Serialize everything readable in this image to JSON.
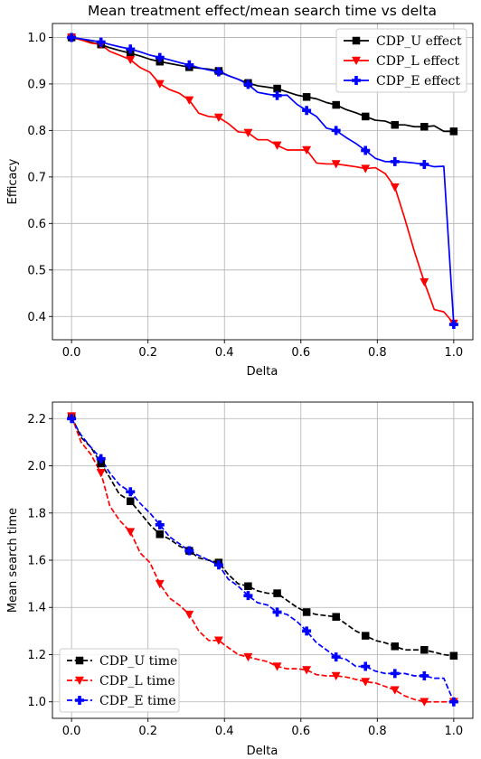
{
  "chart_data": [
    {
      "type": "line",
      "title": "Mean treatment effect/mean search time vs delta",
      "xlabel": "Delta",
      "ylabel": "Efficacy",
      "xlim": [
        -0.05,
        1.05
      ],
      "ylim": [
        0.35,
        1.03
      ],
      "xticks": [
        0.0,
        0.2,
        0.4,
        0.6,
        0.8,
        1.0
      ],
      "xtick_labels": [
        "0.0",
        "0.2",
        "0.4",
        "0.6",
        "0.8",
        "1.0"
      ],
      "yticks": [
        0.4,
        0.5,
        0.6,
        0.7,
        0.8,
        0.9,
        1.0
      ],
      "ytick_labels": [
        "0.4",
        "0.5",
        "0.6",
        "0.7",
        "0.8",
        "0.9",
        "1.0"
      ],
      "grid": true,
      "legend": "top-right",
      "series": [
        {
          "name": "CDP_U effect",
          "color": "#000000",
          "marker": "square",
          "dash": "solid",
          "x": [
            0.0,
            0.025,
            0.05,
            0.075,
            0.1,
            0.125,
            0.154,
            0.18,
            0.205,
            0.231,
            0.256,
            0.282,
            0.308,
            0.333,
            0.359,
            0.385,
            0.41,
            0.436,
            0.462,
            0.487,
            0.513,
            0.538,
            0.564,
            0.59,
            0.615,
            0.641,
            0.667,
            0.692,
            0.718,
            0.744,
            0.769,
            0.795,
            0.821,
            0.846,
            0.872,
            0.897,
            0.923,
            0.949,
            0.974,
            1.0
          ],
          "y": [
            1.0,
            0.995,
            0.99,
            0.985,
            0.978,
            0.972,
            0.966,
            0.96,
            0.953,
            0.948,
            0.944,
            0.94,
            0.936,
            0.934,
            0.932,
            0.928,
            0.918,
            0.91,
            0.902,
            0.896,
            0.893,
            0.89,
            0.883,
            0.876,
            0.872,
            0.868,
            0.86,
            0.855,
            0.845,
            0.838,
            0.83,
            0.822,
            0.82,
            0.812,
            0.812,
            0.808,
            0.808,
            0.81,
            0.798,
            0.798
          ],
          "marker_x": [
            0.0,
            0.077,
            0.154,
            0.231,
            0.308,
            0.385,
            0.462,
            0.538,
            0.615,
            0.692,
            0.769,
            0.846,
            0.923,
            1.0
          ],
          "marker_y": [
            1.0,
            0.985,
            0.966,
            0.948,
            0.936,
            0.928,
            0.902,
            0.89,
            0.872,
            0.855,
            0.83,
            0.812,
            0.808,
            0.798
          ]
        },
        {
          "name": "CDP_L effect",
          "color": "#ff0000",
          "marker": "triangle-down",
          "dash": "solid",
          "x": [
            0.0,
            0.025,
            0.05,
            0.077,
            0.1,
            0.125,
            0.154,
            0.18,
            0.205,
            0.231,
            0.256,
            0.282,
            0.308,
            0.333,
            0.359,
            0.385,
            0.41,
            0.436,
            0.462,
            0.487,
            0.513,
            0.538,
            0.564,
            0.59,
            0.615,
            0.641,
            0.667,
            0.692,
            0.718,
            0.744,
            0.769,
            0.795,
            0.821,
            0.846,
            0.872,
            0.897,
            0.923,
            0.949,
            0.974,
            1.0
          ],
          "y": [
            1.0,
            0.995,
            0.988,
            0.985,
            0.97,
            0.962,
            0.952,
            0.935,
            0.925,
            0.9,
            0.888,
            0.88,
            0.865,
            0.837,
            0.83,
            0.828,
            0.815,
            0.797,
            0.795,
            0.78,
            0.78,
            0.768,
            0.758,
            0.758,
            0.758,
            0.73,
            0.728,
            0.728,
            0.725,
            0.722,
            0.718,
            0.72,
            0.707,
            0.678,
            0.61,
            0.54,
            0.474,
            0.415,
            0.41,
            0.385
          ],
          "marker_x": [
            0.0,
            0.077,
            0.154,
            0.231,
            0.308,
            0.385,
            0.462,
            0.538,
            0.615,
            0.692,
            0.769,
            0.846,
            0.923,
            1.0
          ],
          "marker_y": [
            1.0,
            0.985,
            0.952,
            0.9,
            0.865,
            0.828,
            0.795,
            0.768,
            0.758,
            0.728,
            0.718,
            0.678,
            0.474,
            0.385
          ]
        },
        {
          "name": "CDP_E effect",
          "color": "#0000ff",
          "marker": "plus",
          "dash": "solid",
          "x": [
            0.0,
            0.025,
            0.05,
            0.077,
            0.1,
            0.125,
            0.154,
            0.18,
            0.205,
            0.231,
            0.256,
            0.282,
            0.308,
            0.333,
            0.359,
            0.385,
            0.41,
            0.436,
            0.462,
            0.487,
            0.513,
            0.538,
            0.564,
            0.59,
            0.615,
            0.641,
            0.667,
            0.692,
            0.718,
            0.744,
            0.769,
            0.795,
            0.821,
            0.846,
            0.872,
            0.897,
            0.923,
            0.949,
            0.974,
            1.0
          ],
          "y": [
            1.0,
            0.997,
            0.994,
            0.99,
            0.985,
            0.98,
            0.975,
            0.969,
            0.962,
            0.957,
            0.952,
            0.946,
            0.941,
            0.935,
            0.93,
            0.926,
            0.918,
            0.91,
            0.899,
            0.882,
            0.878,
            0.875,
            0.876,
            0.856,
            0.843,
            0.83,
            0.805,
            0.8,
            0.785,
            0.772,
            0.757,
            0.74,
            0.733,
            0.733,
            0.732,
            0.73,
            0.727,
            0.722,
            0.723,
            0.383
          ],
          "marker_x": [
            0.0,
            0.077,
            0.154,
            0.231,
            0.308,
            0.385,
            0.462,
            0.538,
            0.615,
            0.692,
            0.769,
            0.846,
            0.923,
            1.0
          ],
          "marker_y": [
            1.0,
            0.99,
            0.975,
            0.957,
            0.941,
            0.926,
            0.899,
            0.875,
            0.843,
            0.8,
            0.757,
            0.733,
            0.727,
            0.383
          ]
        }
      ]
    },
    {
      "type": "line",
      "title": "",
      "xlabel": "Delta",
      "ylabel": "Mean search time",
      "xlim": [
        -0.05,
        1.05
      ],
      "ylim": [
        0.93,
        2.27
      ],
      "xticks": [
        0.0,
        0.2,
        0.4,
        0.6,
        0.8,
        1.0
      ],
      "xtick_labels": [
        "0.0",
        "0.2",
        "0.4",
        "0.6",
        "0.8",
        "1.0"
      ],
      "yticks": [
        1.0,
        1.2,
        1.4,
        1.6,
        1.8,
        2.0,
        2.2
      ],
      "ytick_labels": [
        "1.0",
        "1.2",
        "1.4",
        "1.6",
        "1.8",
        "2.0",
        "2.2"
      ],
      "grid": true,
      "legend": "bottom-left",
      "series": [
        {
          "name": "CDP_U time",
          "color": "#000000",
          "marker": "square",
          "dash": "dashed",
          "x": [
            0.0,
            0.025,
            0.05,
            0.077,
            0.1,
            0.125,
            0.154,
            0.18,
            0.205,
            0.231,
            0.256,
            0.282,
            0.308,
            0.333,
            0.359,
            0.385,
            0.41,
            0.436,
            0.462,
            0.487,
            0.513,
            0.538,
            0.564,
            0.59,
            0.615,
            0.641,
            0.667,
            0.692,
            0.718,
            0.744,
            0.769,
            0.795,
            0.821,
            0.846,
            0.872,
            0.897,
            0.923,
            0.949,
            0.974,
            1.0
          ],
          "y": [
            2.21,
            2.12,
            2.08,
            2.01,
            1.95,
            1.88,
            1.85,
            1.8,
            1.75,
            1.71,
            1.69,
            1.66,
            1.64,
            1.61,
            1.6,
            1.59,
            1.54,
            1.5,
            1.49,
            1.47,
            1.46,
            1.46,
            1.43,
            1.4,
            1.38,
            1.37,
            1.365,
            1.36,
            1.33,
            1.3,
            1.28,
            1.26,
            1.25,
            1.235,
            1.22,
            1.22,
            1.22,
            1.21,
            1.2,
            1.195
          ],
          "marker_x": [
            0.0,
            0.077,
            0.154,
            0.231,
            0.308,
            0.385,
            0.462,
            0.538,
            0.615,
            0.692,
            0.769,
            0.846,
            0.923,
            1.0
          ],
          "marker_y": [
            2.21,
            2.01,
            1.85,
            1.71,
            1.64,
            1.59,
            1.49,
            1.46,
            1.38,
            1.36,
            1.28,
            1.235,
            1.22,
            1.195
          ]
        },
        {
          "name": "CDP_L time",
          "color": "#ff0000",
          "marker": "triangle-down",
          "dash": "dashed",
          "x": [
            0.0,
            0.025,
            0.05,
            0.077,
            0.1,
            0.125,
            0.154,
            0.18,
            0.205,
            0.231,
            0.256,
            0.282,
            0.308,
            0.333,
            0.359,
            0.385,
            0.41,
            0.436,
            0.462,
            0.487,
            0.513,
            0.538,
            0.564,
            0.59,
            0.615,
            0.641,
            0.667,
            0.692,
            0.718,
            0.744,
            0.769,
            0.795,
            0.821,
            0.846,
            0.872,
            0.897,
            0.923,
            0.949,
            0.974,
            1.0
          ],
          "y": [
            2.21,
            2.1,
            2.05,
            1.97,
            1.83,
            1.77,
            1.72,
            1.63,
            1.59,
            1.5,
            1.44,
            1.41,
            1.37,
            1.3,
            1.26,
            1.26,
            1.23,
            1.2,
            1.19,
            1.18,
            1.17,
            1.15,
            1.14,
            1.14,
            1.135,
            1.115,
            1.11,
            1.11,
            1.105,
            1.095,
            1.085,
            1.08,
            1.065,
            1.05,
            1.025,
            1.01,
            1.0,
            1.0,
            1.0,
            1.0
          ],
          "marker_x": [
            0.0,
            0.077,
            0.154,
            0.231,
            0.308,
            0.385,
            0.462,
            0.538,
            0.615,
            0.692,
            0.769,
            0.846,
            0.923,
            1.0
          ],
          "marker_y": [
            2.21,
            1.97,
            1.72,
            1.5,
            1.37,
            1.26,
            1.19,
            1.15,
            1.135,
            1.11,
            1.085,
            1.05,
            1.0,
            1.0
          ]
        },
        {
          "name": "CDP_E time",
          "color": "#0000ff",
          "marker": "plus",
          "dash": "dashed",
          "x": [
            0.0,
            0.025,
            0.05,
            0.077,
            0.1,
            0.125,
            0.154,
            0.18,
            0.205,
            0.231,
            0.256,
            0.282,
            0.308,
            0.333,
            0.359,
            0.385,
            0.41,
            0.436,
            0.462,
            0.487,
            0.513,
            0.538,
            0.564,
            0.59,
            0.615,
            0.641,
            0.667,
            0.692,
            0.718,
            0.744,
            0.769,
            0.795,
            0.821,
            0.846,
            0.872,
            0.897,
            0.923,
            0.949,
            0.974,
            1.0
          ],
          "y": [
            2.2,
            2.13,
            2.08,
            2.03,
            1.97,
            1.92,
            1.89,
            1.84,
            1.8,
            1.75,
            1.7,
            1.67,
            1.64,
            1.62,
            1.6,
            1.58,
            1.52,
            1.49,
            1.45,
            1.42,
            1.41,
            1.38,
            1.37,
            1.34,
            1.3,
            1.25,
            1.22,
            1.19,
            1.18,
            1.15,
            1.15,
            1.13,
            1.12,
            1.12,
            1.12,
            1.11,
            1.11,
            1.1,
            1.1,
            1.0
          ],
          "marker_x": [
            0.0,
            0.077,
            0.154,
            0.231,
            0.308,
            0.385,
            0.462,
            0.538,
            0.615,
            0.692,
            0.769,
            0.846,
            0.923,
            1.0
          ],
          "marker_y": [
            2.2,
            2.03,
            1.89,
            1.75,
            1.64,
            1.58,
            1.45,
            1.38,
            1.3,
            1.19,
            1.15,
            1.12,
            1.11,
            1.0
          ]
        }
      ]
    }
  ]
}
